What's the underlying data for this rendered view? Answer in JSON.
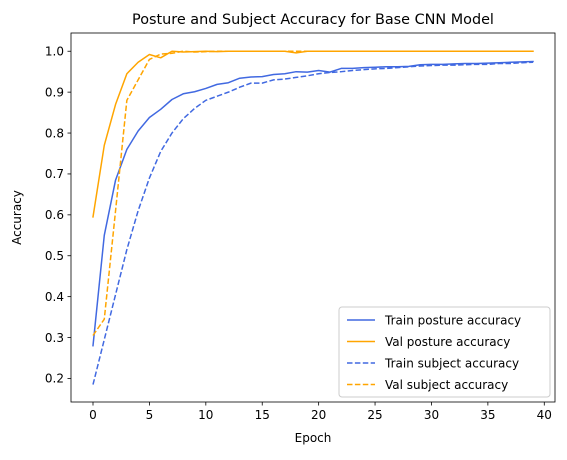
{
  "chart_data": {
    "type": "line",
    "title": "Posture and Subject Accuracy for Base CNN Model",
    "xlabel": "Epoch",
    "ylabel": "Accuracy",
    "xlim": [
      -1.95,
      40.95
    ],
    "ylim": [
      0.1424,
      1.0446
    ],
    "xticks": [
      0,
      5,
      10,
      15,
      20,
      25,
      30,
      35,
      40
    ],
    "yticks": [
      0.2,
      0.3,
      0.4,
      0.5,
      0.6,
      0.7,
      0.8,
      0.9,
      1.0
    ],
    "xtick_labels": [
      "0",
      "5",
      "10",
      "15",
      "20",
      "25",
      "30",
      "35",
      "40"
    ],
    "ytick_labels": [
      "0.2",
      "0.3",
      "0.4",
      "0.5",
      "0.6",
      "0.7",
      "0.8",
      "0.9",
      "1.0"
    ],
    "grid": false,
    "legend_position": "lower-right",
    "x": [
      0,
      1,
      2,
      3,
      4,
      5,
      6,
      7,
      8,
      9,
      10,
      11,
      12,
      13,
      14,
      15,
      16,
      17,
      18,
      19,
      20,
      21,
      22,
      23,
      24,
      25,
      26,
      27,
      28,
      29,
      30,
      31,
      32,
      33,
      34,
      35,
      36,
      37,
      38,
      39
    ],
    "series": [
      {
        "name": "Train posture accuracy",
        "color": "#4169e1",
        "style": "solid",
        "values": [
          0.28,
          0.55,
          0.685,
          0.76,
          0.805,
          0.838,
          0.858,
          0.882,
          0.896,
          0.901,
          0.909,
          0.919,
          0.923,
          0.934,
          0.937,
          0.938,
          0.943,
          0.945,
          0.95,
          0.949,
          0.953,
          0.949,
          0.958,
          0.958,
          0.96,
          0.961,
          0.962,
          0.962,
          0.963,
          0.967,
          0.968,
          0.968,
          0.969,
          0.97,
          0.97,
          0.971,
          0.972,
          0.973,
          0.974,
          0.975
        ]
      },
      {
        "name": "Val posture accuracy",
        "color": "#ffa500",
        "style": "solid",
        "values": [
          0.595,
          0.77,
          0.87,
          0.945,
          0.973,
          0.992,
          0.984,
          1.0,
          0.998,
          0.999,
          1.0,
          0.999,
          1.0,
          1.0,
          1.0,
          1.0,
          1.0,
          1.0,
          0.996,
          1.0,
          1.0,
          1.0,
          1.0,
          1.0,
          1.0,
          1.0,
          1.0,
          1.0,
          1.0,
          1.0,
          1.0,
          1.0,
          1.0,
          1.0,
          1.0,
          1.0,
          1.0,
          1.0,
          1.0,
          1.0
        ]
      },
      {
        "name": "Train subject accuracy",
        "color": "#4169e1",
        "style": "dashed",
        "values": [
          0.185,
          0.295,
          0.405,
          0.515,
          0.61,
          0.69,
          0.755,
          0.8,
          0.835,
          0.86,
          0.88,
          0.89,
          0.9,
          0.912,
          0.922,
          0.922,
          0.93,
          0.932,
          0.936,
          0.94,
          0.945,
          0.948,
          0.95,
          0.953,
          0.955,
          0.957,
          0.958,
          0.96,
          0.962,
          0.964,
          0.965,
          0.966,
          0.966,
          0.967,
          0.968,
          0.968,
          0.97,
          0.97,
          0.972,
          0.973
        ]
      },
      {
        "name": "Val subject accuracy",
        "color": "#ffa500",
        "style": "dashed",
        "values": [
          0.305,
          0.345,
          0.61,
          0.88,
          0.93,
          0.98,
          0.993,
          0.995,
          1.0,
          0.998,
          0.999,
          1.0,
          1.0,
          1.0,
          1.0,
          1.0,
          1.0,
          1.0,
          1.0,
          1.0,
          1.0,
          1.0,
          1.0,
          1.0,
          1.0,
          1.0,
          1.0,
          1.0,
          1.0,
          1.0,
          1.0,
          1.0,
          1.0,
          1.0,
          1.0,
          1.0,
          1.0,
          1.0,
          1.0,
          1.0
        ]
      }
    ]
  }
}
